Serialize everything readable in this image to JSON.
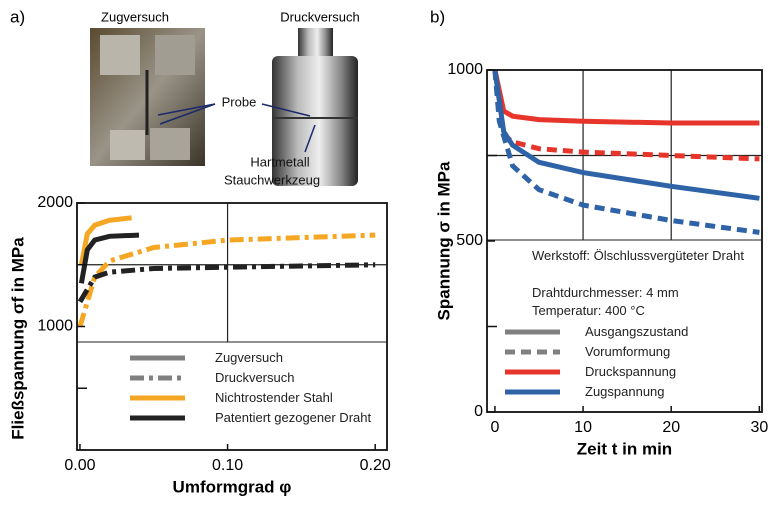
{
  "photos": {
    "labels": [
      "Zugversuch",
      "Druckversuch",
      "Probe",
      "Hartmetall",
      "Stauchwerkzeug"
    ]
  },
  "chart_data": [
    {
      "type": "line",
      "panel_label": "a)",
      "xlabel": "Umformgrad φ",
      "ylabel": "Fließspannung σf in MPa",
      "xlim": [
        -0.002,
        0.208
      ],
      "ylim": [
        0,
        2000
      ],
      "xticks": [
        {
          "value": 0,
          "label": "0.00"
        },
        {
          "value": 0.1,
          "label": "0.10"
        },
        {
          "value": 0.2,
          "label": "0.20"
        }
      ],
      "yticks": [
        1000,
        2000
      ],
      "y_minor_ticks": [
        500,
        1500
      ],
      "x_grid": [
        0.1
      ],
      "y_grid": [
        1500
      ],
      "series": [
        {
          "color": "#f5a623",
          "dash": "solid",
          "x": [
            0.001,
            0.005,
            0.01,
            0.02,
            0.035
          ],
          "values": [
            1500,
            1750,
            1820,
            1860,
            1880
          ]
        },
        {
          "color": "#222222",
          "dash": "solid",
          "x": [
            0.001,
            0.005,
            0.01,
            0.02,
            0.04
          ],
          "values": [
            1350,
            1620,
            1700,
            1730,
            1740
          ]
        },
        {
          "color": "#f5a623",
          "dash": "dashdot",
          "x": [
            0,
            0.01,
            0.02,
            0.05,
            0.1,
            0.15,
            0.2
          ],
          "values": [
            1000,
            1400,
            1530,
            1640,
            1700,
            1720,
            1740
          ]
        },
        {
          "color": "#222222",
          "dash": "dashdot",
          "x": [
            0,
            0.01,
            0.02,
            0.05,
            0.1,
            0.15,
            0.2
          ],
          "values": [
            1200,
            1400,
            1440,
            1470,
            1480,
            1490,
            1500
          ]
        }
      ],
      "legend": [
        {
          "label": "Zugversuch",
          "color": "#808080",
          "dash": "solid"
        },
        {
          "label": "Druckversuch",
          "color": "#808080",
          "dash": "dashdot"
        },
        {
          "label": "Nichtrostender Stahl",
          "color": "#f5a623",
          "dash": "solid"
        },
        {
          "label": "Patentiert gezogener Draht",
          "color": "#222222",
          "dash": "solid"
        }
      ]
    },
    {
      "type": "line",
      "panel_label": "b)",
      "xlabel": "Zeit t in min",
      "ylabel": "Spannung σ in MPa",
      "xlim": [
        -0.9,
        30.3
      ],
      "ylim": [
        0,
        1000
      ],
      "xticks": [
        0,
        10,
        20,
        30
      ],
      "yticks": [
        0,
        500,
        1000
      ],
      "y_minor_ticks": [
        250,
        750
      ],
      "x_grid": [
        10,
        20
      ],
      "y_grid": [
        750
      ],
      "series": [
        {
          "color": "#e8352b",
          "dash": "solid",
          "x": [
            0,
            1,
            2,
            5,
            10,
            20,
            30
          ],
          "values": [
            1000,
            880,
            865,
            855,
            850,
            845,
            845
          ]
        },
        {
          "color": "#e8352b",
          "dash": "dashed",
          "x": [
            0,
            1,
            2,
            5,
            10,
            20,
            30
          ],
          "values": [
            1000,
            810,
            790,
            770,
            760,
            750,
            740
          ]
        },
        {
          "color": "#2e63a8",
          "dash": "solid",
          "x": [
            0,
            1,
            2,
            5,
            10,
            20,
            30
          ],
          "values": [
            1000,
            820,
            780,
            730,
            700,
            660,
            625
          ]
        },
        {
          "color": "#2e63a8",
          "dash": "dashed",
          "x": [
            0,
            0.5,
            2,
            5,
            10,
            20,
            30
          ],
          "values": [
            1000,
            850,
            720,
            650,
            605,
            560,
            525
          ]
        }
      ],
      "notes": [
        "Werkstoff: Ölschlussvergüteter Draht",
        "Drahtdurchmesser: 4 mm",
        "Temperatur: 400 °C"
      ],
      "legend": [
        {
          "label": "Ausgangszustand",
          "color": "#808080",
          "dash": "solid"
        },
        {
          "label": "Vorumformung",
          "color": "#808080",
          "dash": "dashed"
        },
        {
          "label": "Druckspannung",
          "color": "#e8352b",
          "dash": "solid"
        },
        {
          "label": "Zugspannung",
          "color": "#2e63a8",
          "dash": "solid"
        }
      ]
    }
  ]
}
